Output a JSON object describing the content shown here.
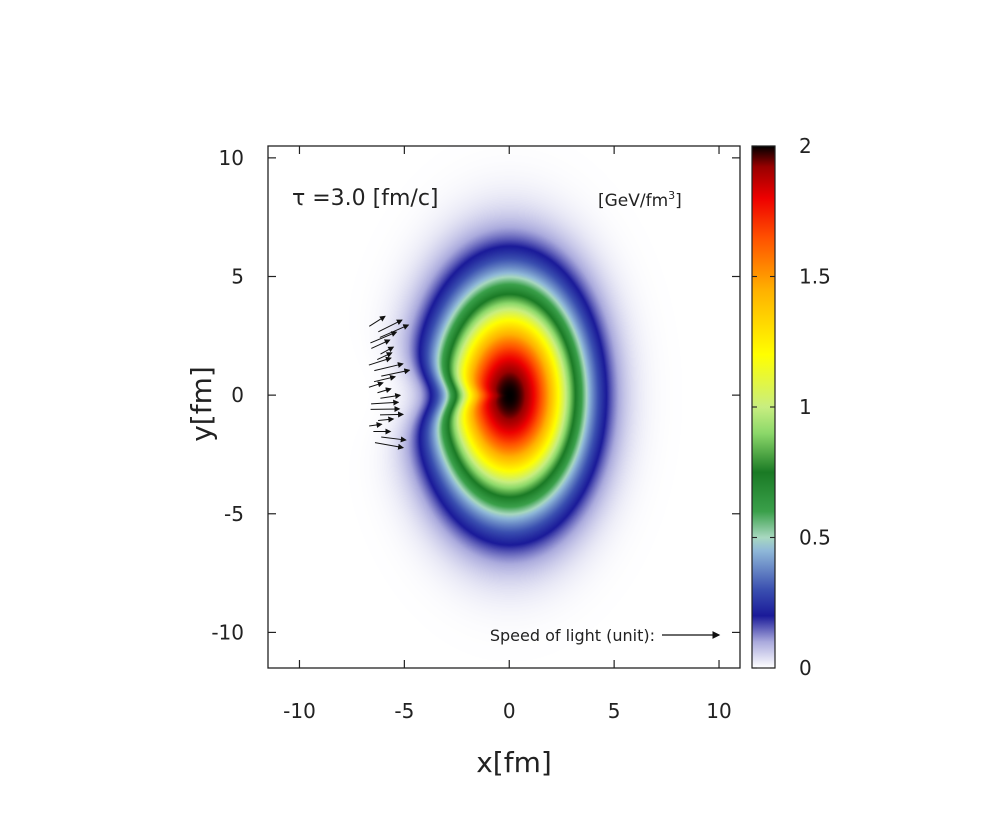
{
  "chart_data": {
    "type": "heatmap",
    "title": "τ =3.0 [fm/c]",
    "xlabel": "x[fm]",
    "ylabel": "y[fm]",
    "xlim": [
      -11.5,
      11
    ],
    "ylim": [
      -11.5,
      10.5
    ],
    "x_ticks": [
      -10,
      -5,
      0,
      5,
      10
    ],
    "y_ticks": [
      10,
      5,
      0,
      -5,
      -10
    ],
    "x_tick_labels": [
      "-10",
      "-5",
      "0",
      "5",
      "10"
    ],
    "y_tick_labels": [
      "10",
      "5",
      "0",
      "-5",
      "-10"
    ],
    "colorbar": {
      "label": "[GeV/fm",
      "label_sup": "3",
      "label_close": "]",
      "range": [
        0,
        2
      ],
      "ticks": [
        0,
        0.5,
        1,
        1.5,
        2
      ],
      "tick_labels": [
        "0",
        "0.5",
        "1",
        "1.5",
        "2"
      ],
      "stops": [
        {
          "value": 0.0,
          "color": "#ffffff"
        },
        {
          "value": 0.1,
          "color": "#aaaadd"
        },
        {
          "value": 0.2,
          "color": "#1a1a99"
        },
        {
          "value": 0.3,
          "color": "#3a4fb0"
        },
        {
          "value": 0.45,
          "color": "#8fb8d8"
        },
        {
          "value": 0.5,
          "color": "#a8d8c0"
        },
        {
          "value": 0.6,
          "color": "#3aa04a"
        },
        {
          "value": 0.75,
          "color": "#1a7a25"
        },
        {
          "value": 0.9,
          "color": "#8cd86a"
        },
        {
          "value": 1.0,
          "color": "#c8ee80"
        },
        {
          "value": 1.2,
          "color": "#ffff00"
        },
        {
          "value": 1.45,
          "color": "#ffb000"
        },
        {
          "value": 1.65,
          "color": "#ff5000"
        },
        {
          "value": 1.8,
          "color": "#ee0000"
        },
        {
          "value": 1.92,
          "color": "#990000"
        },
        {
          "value": 2.0,
          "color": "#000000"
        }
      ]
    },
    "field": {
      "description_peak": 2.0,
      "center": [
        0,
        0
      ]
    },
    "legend_arrow_label": "Speed of light (unit):",
    "grid": false
  }
}
